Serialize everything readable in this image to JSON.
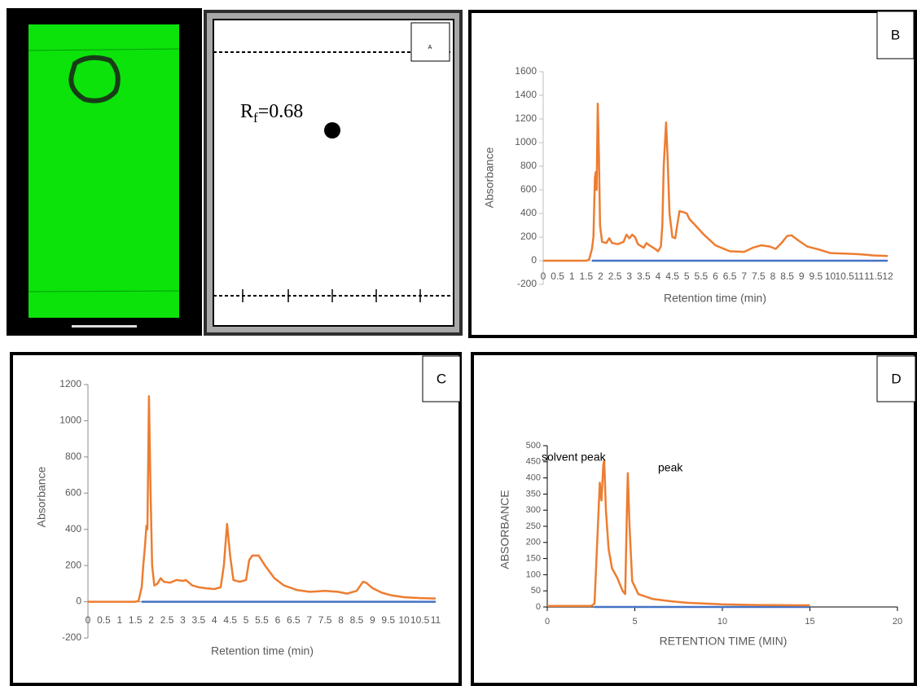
{
  "tlc_diagram": {
    "label": "A",
    "rf_symbol": "R",
    "rf_subscript": "f",
    "rf_value": "=0.68"
  },
  "chart_data": [
    {
      "type": "line",
      "panel_label": "B",
      "x_label": "Retention time (min)",
      "y_label": "Absorbance",
      "xlim": [
        0,
        12
      ],
      "ylim": [
        -200,
        1600
      ],
      "xticks": [
        0,
        0.5,
        1,
        1.5,
        2,
        2.5,
        3,
        3.5,
        4,
        4.5,
        5,
        5.5,
        6,
        6.5,
        7,
        7.5,
        8,
        8.5,
        9,
        9.5,
        10,
        10.5,
        11,
        11.5,
        12
      ],
      "yticks": [
        -200,
        0,
        200,
        400,
        600,
        800,
        1000,
        1200,
        1400,
        1600
      ],
      "series": [
        {
          "color": "#4472c4",
          "x": [
            1.7,
            12
          ],
          "values": [
            0,
            0
          ]
        },
        {
          "color": "#ed7d31",
          "x": [
            0,
            1.5,
            1.6,
            1.7,
            1.75,
            1.8,
            1.83,
            1.86,
            1.9,
            1.94,
            1.98,
            2.05,
            2.2,
            2.3,
            2.4,
            2.6,
            2.8,
            2.9,
            3.0,
            3.1,
            3.2,
            3.3,
            3.5,
            3.6,
            3.7,
            3.9,
            4.0,
            4.1,
            4.15,
            4.2,
            4.28,
            4.33,
            4.4,
            4.5,
            4.6,
            4.7,
            4.75,
            4.9,
            5.0,
            5.1,
            5.3,
            5.6,
            6.0,
            6.5,
            7.0,
            7.3,
            7.6,
            7.9,
            8.1,
            8.3,
            8.5,
            8.65,
            8.9,
            9.2,
            9.6,
            10,
            10.5,
            11,
            11.5,
            12
          ],
          "values": [
            0,
            0,
            10,
            100,
            200,
            700,
            750,
            600,
            1330,
            900,
            300,
            160,
            150,
            190,
            150,
            140,
            160,
            220,
            190,
            220,
            200,
            140,
            110,
            150,
            130,
            100,
            80,
            120,
            300,
            800,
            1170,
            900,
            400,
            200,
            190,
            350,
            420,
            410,
            400,
            350,
            300,
            220,
            130,
            80,
            75,
            110,
            130,
            120,
            100,
            150,
            210,
            215,
            170,
            120,
            95,
            65,
            60,
            55,
            45,
            40
          ]
        }
      ]
    },
    {
      "type": "line",
      "panel_label": "C",
      "x_label": "Retention time (min)",
      "y_label": "Absorbance",
      "xlim": [
        0,
        11
      ],
      "ylim": [
        -200,
        1200
      ],
      "xticks": [
        0,
        0.5,
        1,
        1.5,
        2,
        2.5,
        3,
        3.5,
        4,
        4.5,
        5,
        5.5,
        6,
        6.5,
        7,
        7.5,
        8,
        8.5,
        9,
        9.5,
        10,
        10.5,
        11
      ],
      "yticks": [
        -200,
        0,
        200,
        400,
        600,
        800,
        1000,
        1200
      ],
      "series": [
        {
          "color": "#4472c4",
          "x": [
            1.7,
            11
          ],
          "values": [
            0,
            0
          ]
        },
        {
          "color": "#ed7d31",
          "x": [
            0,
            1.5,
            1.6,
            1.7,
            1.75,
            1.8,
            1.85,
            1.88,
            1.93,
            1.98,
            2.03,
            2.1,
            2.2,
            2.3,
            2.4,
            2.6,
            2.8,
            3.0,
            3.1,
            3.3,
            3.5,
            3.7,
            4.0,
            4.2,
            4.3,
            4.4,
            4.5,
            4.6,
            4.8,
            5.0,
            5.1,
            5.2,
            5.4,
            5.6,
            5.9,
            6.2,
            6.6,
            7.0,
            7.5,
            7.9,
            8.2,
            8.5,
            8.7,
            8.8,
            9.0,
            9.3,
            9.6,
            10,
            10.5,
            11
          ],
          "values": [
            0,
            0,
            5,
            80,
            200,
            300,
            420,
            400,
            1135,
            600,
            200,
            90,
            100,
            130,
            110,
            105,
            120,
            115,
            120,
            90,
            80,
            75,
            70,
            80,
            200,
            430,
            250,
            120,
            110,
            120,
            230,
            255,
            255,
            200,
            130,
            90,
            65,
            55,
            60,
            55,
            45,
            60,
            110,
            105,
            75,
            50,
            35,
            25,
            20,
            18
          ]
        }
      ]
    },
    {
      "type": "line",
      "panel_label": "D",
      "x_label": "RETENTION TIME (MIN)",
      "y_label": "ABSORBANCE",
      "annotations": [
        "solvent peak",
        "peak"
      ],
      "xlim": [
        0,
        20
      ],
      "ylim": [
        0,
        500
      ],
      "xticks": [
        0,
        5,
        10,
        15,
        20
      ],
      "yticks": [
        0,
        50,
        100,
        150,
        200,
        250,
        300,
        350,
        400,
        450,
        500
      ],
      "series": [
        {
          "color": "#4472c4",
          "x": [
            2.7,
            15
          ],
          "values": [
            0,
            0
          ]
        },
        {
          "color": "#ed7d31",
          "x": [
            0,
            2.5,
            2.7,
            2.85,
            3.0,
            3.1,
            3.2,
            3.25,
            3.35,
            3.5,
            3.7,
            4.0,
            4.3,
            4.45,
            4.55,
            4.6,
            4.7,
            4.85,
            5.2,
            6,
            7,
            8,
            10,
            12,
            15
          ],
          "values": [
            3,
            3,
            10,
            200,
            385,
            330,
            440,
            455,
            300,
            180,
            120,
            90,
            50,
            40,
            300,
            415,
            250,
            80,
            40,
            25,
            18,
            13,
            8,
            6,
            5
          ]
        }
      ]
    }
  ]
}
